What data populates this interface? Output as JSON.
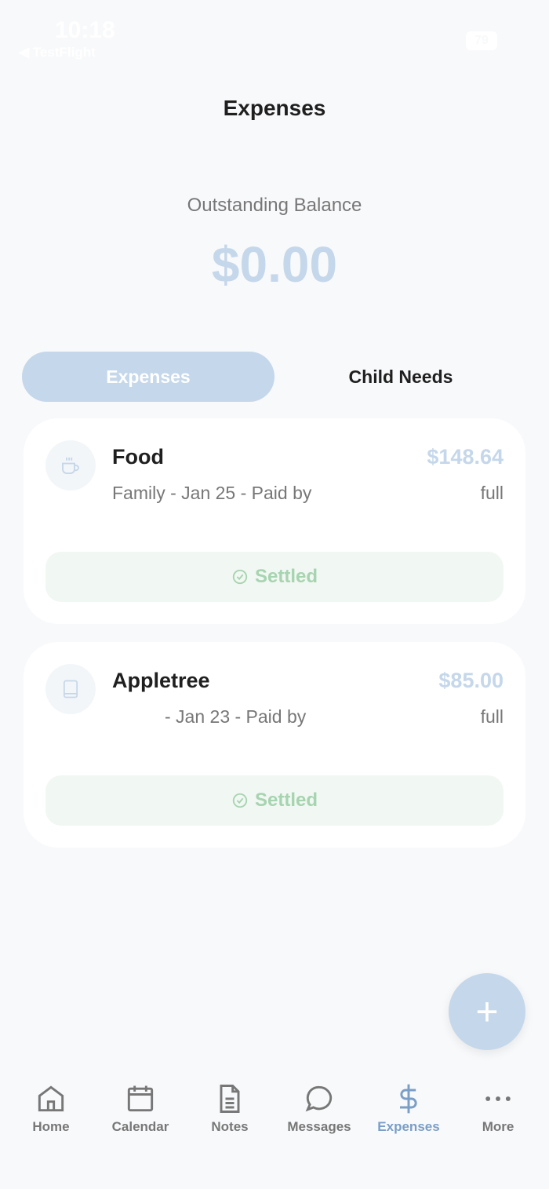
{
  "status_bar": {
    "time": "10:18",
    "back_app": "◀ TestFlight",
    "battery": "79"
  },
  "header": {
    "title": "Expenses"
  },
  "balance": {
    "label": "Outstanding Balance",
    "value": "$0.00"
  },
  "tabs": [
    {
      "label": "Expenses",
      "active": true
    },
    {
      "label": "Child Needs",
      "active": false
    }
  ],
  "expenses": [
    {
      "icon": "coffee-cup-icon",
      "name": "Food",
      "amount": "$148.64",
      "details": "Family - Jan 25 - Paid by",
      "split": "full",
      "status": "Settled"
    },
    {
      "icon": "book-icon",
      "name": "Appletree",
      "amount": "$85.00",
      "details": "- Jan 23 - Paid by",
      "split": "full",
      "status": "Settled"
    }
  ],
  "fab": {
    "label": "+"
  },
  "nav": [
    {
      "label": "Home",
      "icon": "home-icon"
    },
    {
      "label": "Calendar",
      "icon": "calendar-icon"
    },
    {
      "label": "Notes",
      "icon": "notes-icon"
    },
    {
      "label": "Messages",
      "icon": "message-icon"
    },
    {
      "label": "Expenses",
      "icon": "dollar-icon",
      "active": true
    },
    {
      "label": "More",
      "icon": "more-icon"
    }
  ],
  "colors": {
    "accent": "#c5d7ea",
    "settled_text": "#a6d4b0",
    "settled_bg": "#f1f7f2",
    "nav_active": "#7b9ec6"
  }
}
